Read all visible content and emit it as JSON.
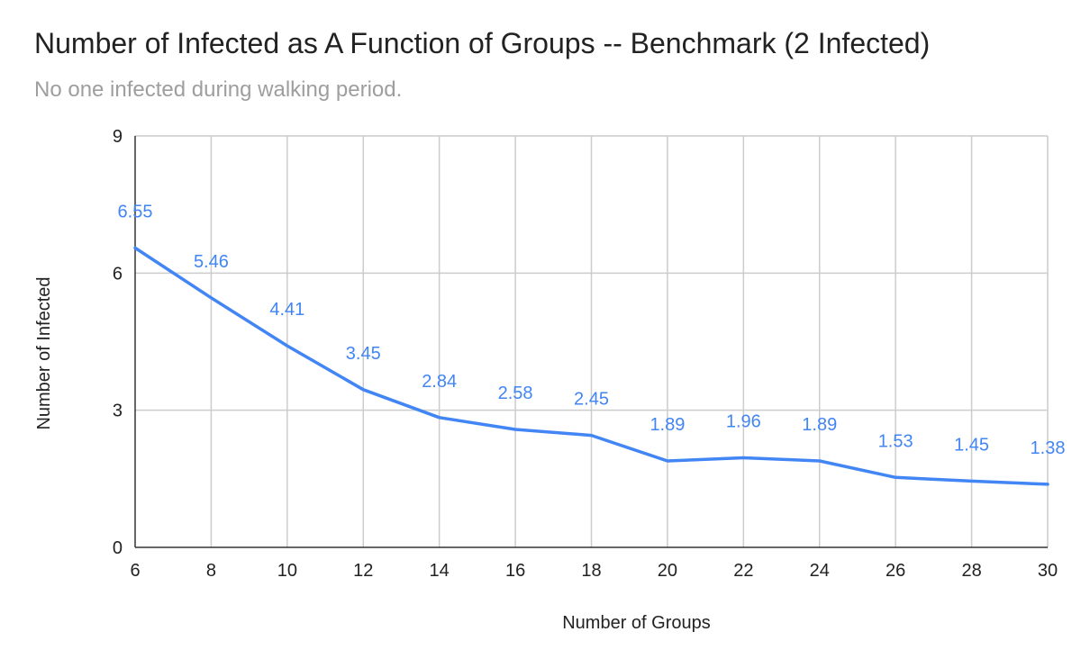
{
  "chart_data": {
    "type": "line",
    "title": "Number of Infected as A Function of Groups -- Benchmark (2 Infected)",
    "subtitle": "No one infected during walking period.",
    "xlabel": "Number of Groups",
    "ylabel": "Number of Infected",
    "x": [
      6,
      8,
      10,
      12,
      14,
      16,
      18,
      20,
      22,
      24,
      26,
      28,
      30
    ],
    "series": [
      {
        "values": [
          6.55,
          5.46,
          4.41,
          3.45,
          2.84,
          2.58,
          2.45,
          1.89,
          1.96,
          1.89,
          1.53,
          1.45,
          1.38
        ],
        "color": "#4285f4"
      }
    ],
    "data_labels": [
      "6.55",
      "5.46",
      "4.41",
      "3.45",
      "2.84",
      "2.58",
      "2.45",
      "1.89",
      "1.96",
      "1.89",
      "1.53",
      "1.45",
      "1.38"
    ],
    "xlim": [
      6,
      30
    ],
    "ylim": [
      0,
      9
    ],
    "xticks": [
      "6",
      "8",
      "10",
      "12",
      "14",
      "16",
      "18",
      "20",
      "22",
      "24",
      "26",
      "28",
      "30"
    ],
    "yticks": [
      "0",
      "3",
      "6",
      "9"
    ],
    "grid": true,
    "legend": "none",
    "colors": {
      "line": "#4285f4",
      "grid": "#cccccc",
      "axis": "#333333",
      "label": "#4285f4"
    }
  }
}
